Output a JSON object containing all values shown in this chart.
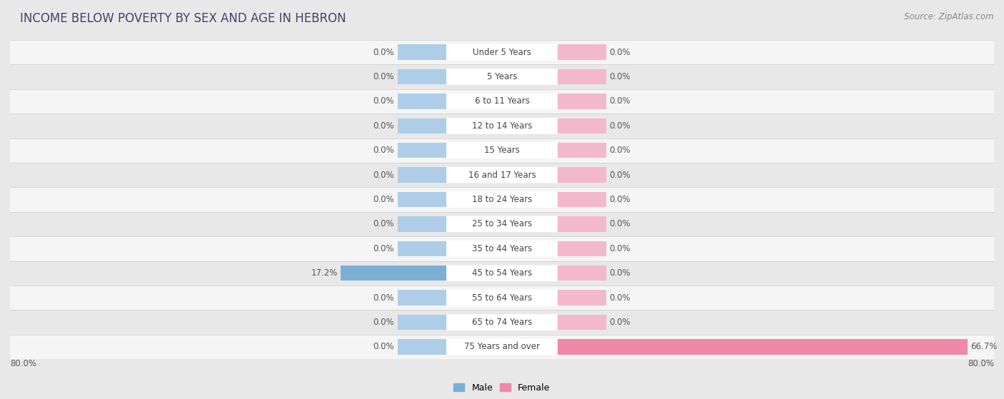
{
  "title": "INCOME BELOW POVERTY BY SEX AND AGE IN HEBRON",
  "source": "Source: ZipAtlas.com",
  "categories": [
    "Under 5 Years",
    "5 Years",
    "6 to 11 Years",
    "12 to 14 Years",
    "15 Years",
    "16 and 17 Years",
    "18 to 24 Years",
    "25 to 34 Years",
    "35 to 44 Years",
    "45 to 54 Years",
    "55 to 64 Years",
    "65 to 74 Years",
    "75 Years and over"
  ],
  "male_values": [
    0.0,
    0.0,
    0.0,
    0.0,
    0.0,
    0.0,
    0.0,
    0.0,
    0.0,
    17.2,
    0.0,
    0.0,
    0.0
  ],
  "female_values": [
    0.0,
    0.0,
    0.0,
    0.0,
    0.0,
    0.0,
    0.0,
    0.0,
    0.0,
    0.0,
    0.0,
    0.0,
    66.7
  ],
  "male_color": "#7bafd4",
  "female_color": "#f088a8",
  "male_color_light": "#aecde8",
  "female_color_light": "#f4b8cc",
  "male_label": "Male",
  "female_label": "Female",
  "xlim": 80.0,
  "min_bar_width": 8.0,
  "background_color": "#e8e8e8",
  "row_bg_even": "#f5f5f5",
  "row_bg_odd": "#e8e8e8",
  "title_fontsize": 12,
  "source_fontsize": 8.5,
  "value_fontsize": 8.5,
  "category_fontsize": 8.5,
  "legend_fontsize": 9
}
